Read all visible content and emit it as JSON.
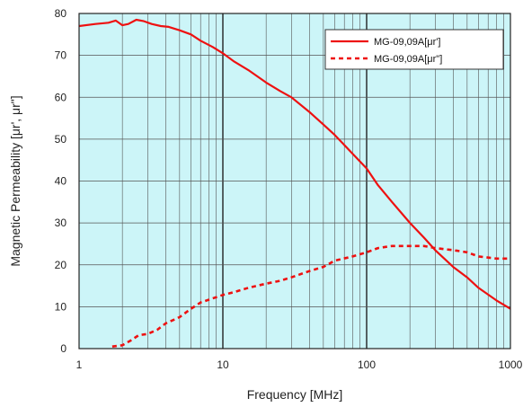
{
  "chart_data": {
    "type": "line",
    "xscale": "log",
    "xlim": [
      1,
      1000
    ],
    "ylim": [
      0,
      80
    ],
    "xlabel": "Frequency [MHz]",
    "ylabel": "Magnetic Permeability [μr', μr\"]",
    "x_ticks": [
      "1",
      "10",
      "100",
      "1000"
    ],
    "y_ticks": [
      "0",
      "10",
      "20",
      "30",
      "40",
      "50",
      "60",
      "70",
      "80"
    ],
    "grid": true,
    "legend_position": "top-right",
    "colors": {
      "series": "#ee1111",
      "plot_background": "#ccf5f8",
      "grid": "#555555"
    },
    "series": [
      {
        "name": "MG-09,09A[μr']",
        "style": "solid",
        "x": [
          1,
          1.3,
          1.6,
          1.8,
          2.0,
          2.2,
          2.5,
          2.8,
          3.2,
          3.7,
          4.2,
          5,
          6,
          7,
          8.5,
          10,
          12,
          15,
          20,
          25,
          30,
          40,
          50,
          60,
          80,
          100,
          120,
          150,
          200,
          250,
          300,
          400,
          500,
          600,
          800,
          1000
        ],
        "values": [
          77,
          77.5,
          77.8,
          78.3,
          77.2,
          77.5,
          78.5,
          78.2,
          77.5,
          77,
          76.8,
          76,
          75,
          73.5,
          72,
          70.5,
          68.5,
          66.5,
          63.5,
          61.5,
          60,
          56.5,
          53.5,
          51,
          46.5,
          43,
          39,
          35,
          30,
          26.5,
          23.5,
          19.5,
          17,
          14.5,
          11.5,
          9.5
        ]
      },
      {
        "name": "MG-09,09A[μr\"]",
        "style": "dashed",
        "x": [
          1.7,
          2.0,
          2.3,
          2.6,
          3.0,
          3.5,
          4.0,
          5,
          6,
          7,
          8.5,
          10,
          12,
          15,
          20,
          25,
          30,
          40,
          50,
          60,
          80,
          100,
          120,
          150,
          200,
          250,
          300,
          400,
          500,
          600,
          800,
          1000
        ],
        "values": [
          0.5,
          0.8,
          2,
          3.2,
          3.5,
          4.5,
          6,
          7.5,
          9.5,
          11,
          12,
          12.8,
          13.5,
          14.5,
          15.5,
          16.2,
          17,
          18.5,
          19.5,
          21,
          22,
          23,
          24,
          24.5,
          24.5,
          24.5,
          24,
          23.5,
          23,
          22,
          21.5,
          21.5
        ]
      }
    ]
  }
}
